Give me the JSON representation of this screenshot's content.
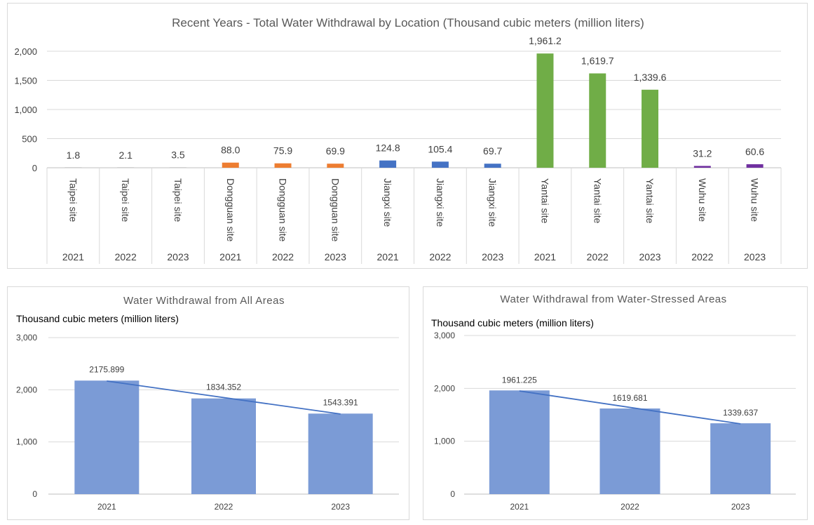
{
  "chart_data": [
    {
      "type": "bar",
      "title": "Recent Years - Total Water Withdrawal by Location (Thousand cubic meters (million liters)",
      "ylim": [
        0,
        2000
      ],
      "yticks": [
        "0",
        "500",
        "1,000",
        "1,500",
        "2,000"
      ],
      "ytick_values": [
        0,
        500,
        1000,
        1500,
        2000
      ],
      "grid": true,
      "categories": [
        {
          "site": "Taipei site",
          "year": "2021"
        },
        {
          "site": "Taipei site",
          "year": "2022"
        },
        {
          "site": "Taipei site",
          "year": "2023"
        },
        {
          "site": "Dongguan site",
          "year": "2021"
        },
        {
          "site": "Dongguan site",
          "year": "2022"
        },
        {
          "site": "Dongguan site",
          "year": "2023"
        },
        {
          "site": "Jiangxi site",
          "year": "2021"
        },
        {
          "site": "Jiangxi site",
          "year": "2022"
        },
        {
          "site": "Jiangxi site",
          "year": "2023"
        },
        {
          "site": "Yantai site",
          "year": "2021"
        },
        {
          "site": "Yantai site",
          "year": "2022"
        },
        {
          "site": "Yantai site",
          "year": "2023"
        },
        {
          "site": "Wuhu site",
          "year": "2022"
        },
        {
          "site": "Wuhu site",
          "year": "2023"
        }
      ],
      "values": [
        1.8,
        2.1,
        3.5,
        88.0,
        75.9,
        69.9,
        124.8,
        105.4,
        69.7,
        1961.2,
        1619.7,
        1339.6,
        31.2,
        60.6
      ],
      "value_labels": [
        "1.8",
        "2.1",
        "3.5",
        "88.0",
        "75.9",
        "69.9",
        "124.8",
        "105.4",
        "69.7",
        "1,961.2",
        "1,619.7",
        "1,339.6",
        "31.2",
        "60.6"
      ],
      "site_colors": {
        "Taipei site": "#a5a5a5",
        "Dongguan site": "#ed7d31",
        "Jiangxi site": "#4472c4",
        "Yantai site": "#70ad47",
        "Wuhu site": "#7030a0"
      }
    },
    {
      "type": "bar",
      "title": "Water Withdrawal from All Areas",
      "ylabel": "Thousand cubic meters  (million liters)",
      "categories": [
        "2021",
        "2022",
        "2023"
      ],
      "values": [
        2175.899,
        1834.352,
        1543.391
      ],
      "value_labels": [
        "2175.899",
        "1834.352",
        "1543.391"
      ],
      "ylim": [
        0,
        3000
      ],
      "yticks": [
        "0",
        "1,000",
        "2,000",
        "3,000"
      ],
      "ytick_values": [
        0,
        1000,
        2000,
        3000
      ],
      "trendline": true,
      "grid": true,
      "color": "#7b9bd6",
      "line_color": "#4472c4"
    },
    {
      "type": "bar",
      "title": "Water Withdrawal from Water-Stressed Areas",
      "ylabel": "Thousand cubic meters  (million liters)",
      "categories": [
        "2021",
        "2022",
        "2023"
      ],
      "values": [
        1961.225,
        1619.681,
        1339.637
      ],
      "value_labels": [
        "1961.225",
        "1619.681",
        "1339.637"
      ],
      "ylim": [
        0,
        3000
      ],
      "yticks": [
        "0",
        "1,000",
        "2,000",
        "3,000"
      ],
      "ytick_values": [
        0,
        1000,
        2000,
        3000
      ],
      "trendline": true,
      "grid": true,
      "color": "#7b9bd6",
      "line_color": "#4472c4"
    }
  ]
}
